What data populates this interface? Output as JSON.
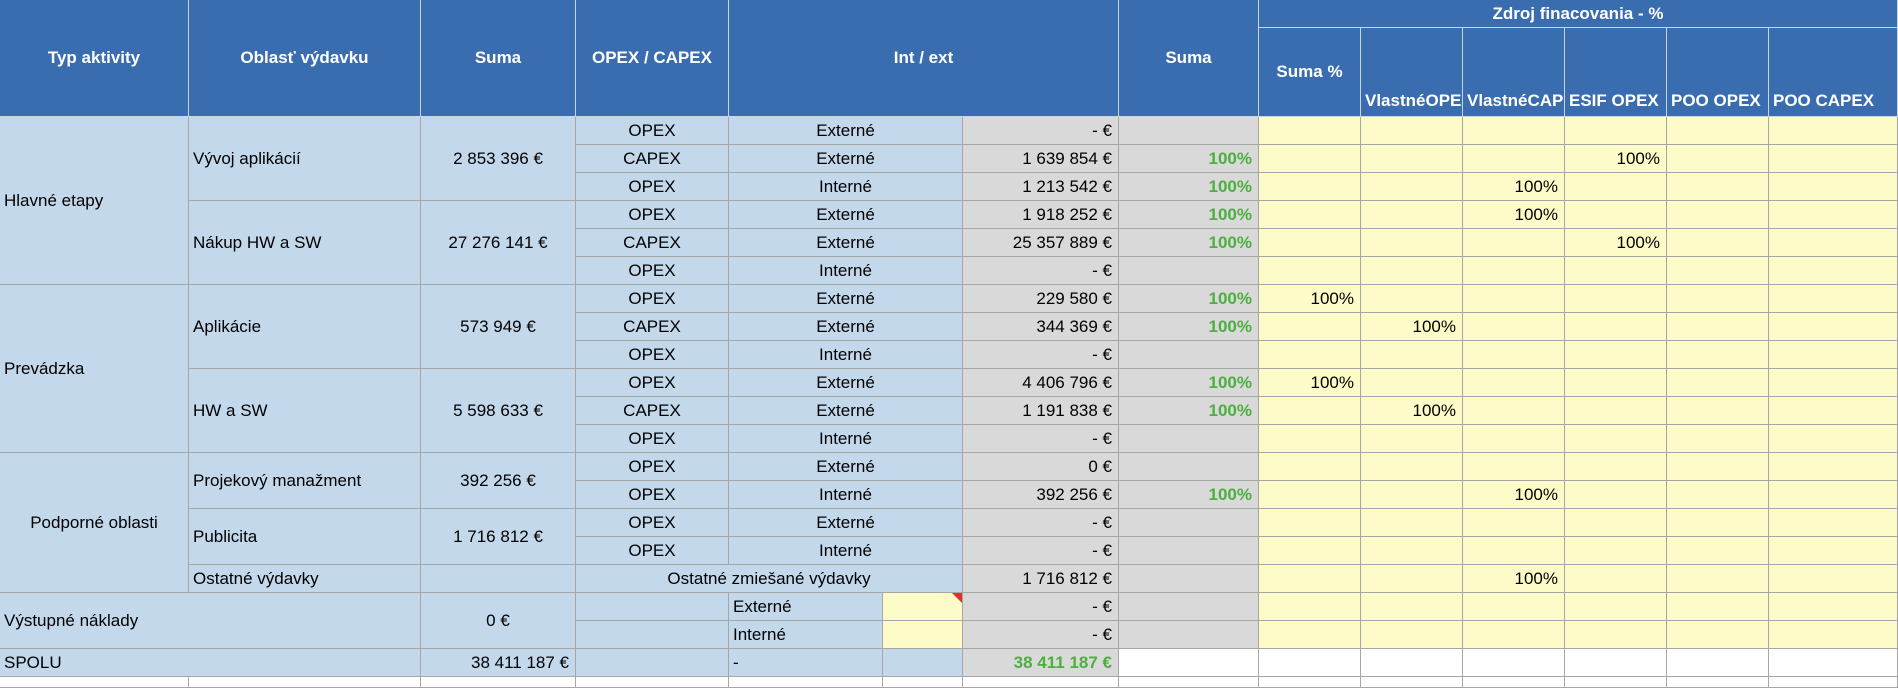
{
  "header": {
    "typ_aktivity": "Typ aktivity",
    "oblast": "Oblasť výdavku",
    "suma": "Suma",
    "opex_capex": "OPEX / CAPEX",
    "int_ext": "Int / ext",
    "suma2": "Suma",
    "zdroj": "Zdroj finacovania - %",
    "suma_pct": "Suma %",
    "vlastne_opex_1": "Vlastné",
    "vlastne_opex_2": "OPEX",
    "vlastne_capex_1": "Vlastné",
    "vlastne_capex_2": "CAPEX",
    "esif_opex": "ESIF OPEX",
    "esif_capex_1": "ESIF",
    "esif_capex_2": "CAPEX",
    "poo_opex": "POO OPEX",
    "poo_capex": "POO CAPEX"
  },
  "groups": {
    "hlavne": "Hlavné etapy",
    "prevadzka": "Prevádzka",
    "podporne": "Podporné oblasti",
    "vystupne": "Výstupné náklady",
    "spolu": "SPOLU"
  },
  "areas": {
    "vyvoj": {
      "name": "Vývoj aplikácií",
      "sum": "2 853 396 €"
    },
    "nakup": {
      "name": "Nákup HW a SW",
      "sum": "27 276 141 €"
    },
    "aplikacie": {
      "name": "Aplikácie",
      "sum": "573 949 €"
    },
    "hwsw": {
      "name": "HW a SW",
      "sum": "5 598 633 €"
    },
    "projekt": {
      "name": "Projekový manažment",
      "sum": "392 256 €"
    },
    "publicita": {
      "name": "Publicita",
      "sum": "1 716 812 €"
    },
    "ostatne": {
      "name": "Ostatné výdavky",
      "desc": "Ostatné zmiešané výdavky",
      "amount": "1 716 812 €",
      "esif_opex": "100%"
    },
    "vystupne_sum": "0 €"
  },
  "rows": [
    {
      "type": "OPEX",
      "int_ext": "Externé",
      "amount": "- €",
      "pct": "",
      "vo": "",
      "vc": "",
      "eo": "",
      "ec": "",
      "po": "",
      "pc": ""
    },
    {
      "type": "CAPEX",
      "int_ext": "Externé",
      "amount": "1 639 854 €",
      "pct": "100%",
      "vo": "",
      "vc": "",
      "eo": "",
      "ec": "100%",
      "po": "",
      "pc": ""
    },
    {
      "type": "OPEX",
      "int_ext": "Interné",
      "amount": "1 213 542 €",
      "pct": "100%",
      "vo": "",
      "vc": "",
      "eo": "100%",
      "ec": "",
      "po": "",
      "pc": ""
    },
    {
      "type": "OPEX",
      "int_ext": "Externé",
      "amount": "1 918 252 €",
      "pct": "100%",
      "vo": "",
      "vc": "",
      "eo": "100%",
      "ec": "",
      "po": "",
      "pc": ""
    },
    {
      "type": "CAPEX",
      "int_ext": "Externé",
      "amount": "25 357 889 €",
      "pct": "100%",
      "vo": "",
      "vc": "",
      "eo": "",
      "ec": "100%",
      "po": "",
      "pc": ""
    },
    {
      "type": "OPEX",
      "int_ext": "Interné",
      "amount": "- €",
      "pct": "",
      "vo": "",
      "vc": "",
      "eo": "",
      "ec": "",
      "po": "",
      "pc": ""
    },
    {
      "type": "OPEX",
      "int_ext": "Externé",
      "amount": "229 580 €",
      "pct": "100%",
      "vo": "100%",
      "vc": "",
      "eo": "",
      "ec": "",
      "po": "",
      "pc": ""
    },
    {
      "type": "CAPEX",
      "int_ext": "Externé",
      "amount": "344 369 €",
      "pct": "100%",
      "vo": "",
      "vc": "100%",
      "eo": "",
      "ec": "",
      "po": "",
      "pc": ""
    },
    {
      "type": "OPEX",
      "int_ext": "Interné",
      "amount": "- €",
      "pct": "",
      "vo": "",
      "vc": "",
      "eo": "",
      "ec": "",
      "po": "",
      "pc": ""
    },
    {
      "type": "OPEX",
      "int_ext": "Externé",
      "amount": "4 406 796 €",
      "pct": "100%",
      "vo": "100%",
      "vc": "",
      "eo": "",
      "ec": "",
      "po": "",
      "pc": ""
    },
    {
      "type": "CAPEX",
      "int_ext": "Externé",
      "amount": "1 191 838 €",
      "pct": "100%",
      "vo": "",
      "vc": "100%",
      "eo": "",
      "ec": "",
      "po": "",
      "pc": ""
    },
    {
      "type": "OPEX",
      "int_ext": "Interné",
      "amount": "- €",
      "pct": "",
      "vo": "",
      "vc": "",
      "eo": "",
      "ec": "",
      "po": "",
      "pc": ""
    },
    {
      "type": "OPEX",
      "int_ext": "Externé",
      "amount": "0 €",
      "pct": "",
      "vo": "",
      "vc": "",
      "eo": "",
      "ec": "",
      "po": "",
      "pc": ""
    },
    {
      "type": "OPEX",
      "int_ext": "Interné",
      "amount": "392 256 €",
      "pct": "100%",
      "vo": "",
      "vc": "",
      "eo": "100%",
      "ec": "",
      "po": "",
      "pc": ""
    },
    {
      "type": "OPEX",
      "int_ext": "Externé",
      "amount": "- €",
      "pct": "",
      "vo": "",
      "vc": "",
      "eo": "",
      "ec": "",
      "po": "",
      "pc": ""
    },
    {
      "type": "OPEX",
      "int_ext": "Interné",
      "amount": "- €",
      "pct": "",
      "vo": "",
      "vc": "",
      "eo": "",
      "ec": "",
      "po": "",
      "pc": ""
    }
  ],
  "vystupne_rows": [
    {
      "int_ext": "Externé",
      "amount": "- €"
    },
    {
      "int_ext": "Interné",
      "amount": "- €"
    }
  ],
  "spolu": {
    "suma": "38 411 187 €",
    "int_ext": "-",
    "amount": "38 411 187 €"
  },
  "colors": {
    "header": "#3a6db0",
    "light_blue": "#c4d8ec",
    "gray": "#d9d9d9",
    "yellow": "#fdfbc8",
    "green_text": "#4caf3f",
    "comment_marker": "#e0322b"
  }
}
